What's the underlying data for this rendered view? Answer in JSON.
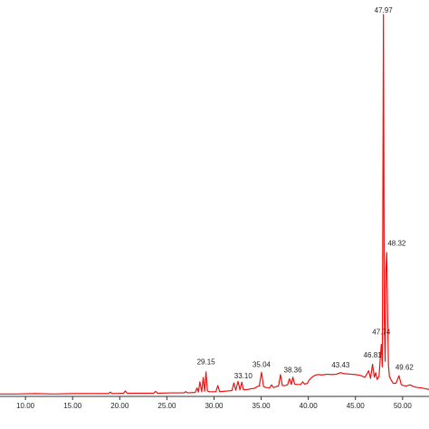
{
  "colors": {
    "trace": "#ee1111",
    "axis": "#333333",
    "text": "#222222"
  },
  "chart_data": {
    "type": "line",
    "title": "",
    "xlabel": "",
    "ylabel": "",
    "xlim": [
      7.3,
      52.8
    ],
    "ylim": [
      0,
      100
    ],
    "grid": false,
    "legend": "none",
    "x_ticks": [
      "10.00",
      "15.00",
      "20.00",
      "25.00",
      "30.00",
      "35.00",
      "40.00",
      "45.00",
      "50.00"
    ],
    "peak_labels": [
      {
        "text": "29.15",
        "x": 29.15,
        "y": 7.5
      },
      {
        "text": "33.10",
        "x": 33.1,
        "y": 3.8
      },
      {
        "text": "35.04",
        "x": 35.04,
        "y": 6.8
      },
      {
        "text": "38.36",
        "x": 38.36,
        "y": 5.3
      },
      {
        "text": "43.43",
        "x": 43.43,
        "y": 6.6
      },
      {
        "text": "46.81",
        "x": 46.81,
        "y": 9.3
      },
      {
        "text": "47.74",
        "x": 47.74,
        "y": 15.3
      },
      {
        "text": "48.32",
        "x": 48.32,
        "y": 38.8
      },
      {
        "text": "47.97",
        "x": 47.97,
        "y": 100
      },
      {
        "text": "49.62",
        "x": 49.62,
        "y": 6.1
      }
    ],
    "series": [
      {
        "x": [
          7.3,
          9.0,
          11.0,
          13.0,
          15.0,
          17.0,
          18.8,
          19.0,
          19.2,
          20.4,
          20.6,
          20.8,
          22.0,
          23.6,
          23.8,
          24.0,
          25.5,
          26.8,
          27.0,
          27.2,
          28.0,
          28.2,
          28.35,
          28.5,
          28.7,
          28.85,
          29.0,
          29.15,
          29.3,
          29.5,
          30.2,
          30.4,
          30.6,
          31.0,
          31.5,
          31.9,
          32.1,
          32.3,
          32.55,
          32.75,
          32.95,
          33.1,
          33.3,
          33.6,
          34.0,
          34.3,
          34.55,
          34.8,
          35.04,
          35.25,
          35.5,
          35.9,
          36.1,
          36.3,
          36.6,
          36.85,
          37.05,
          37.25,
          37.5,
          37.8,
          38.0,
          38.2,
          38.36,
          38.55,
          38.8,
          39.2,
          39.4,
          39.6,
          39.9,
          40.1,
          40.4,
          40.7,
          41.0,
          41.5,
          42.0,
          42.5,
          43.0,
          43.2,
          43.43,
          43.65,
          44.0,
          44.5,
          45.0,
          45.5,
          45.8,
          46.0,
          46.2,
          46.4,
          46.6,
          46.81,
          47.0,
          47.15,
          47.3,
          47.5,
          47.62,
          47.74,
          47.85,
          47.97,
          48.06,
          48.15,
          48.23,
          48.32,
          48.42,
          48.5,
          48.6,
          48.8,
          49.0,
          49.3,
          49.62,
          49.85,
          50.1,
          50.4,
          50.8,
          51.2,
          51.6,
          52.0,
          52.4,
          52.8
        ],
        "y": [
          0.4,
          0.4,
          0.5,
          0.4,
          0.5,
          0.5,
          0.5,
          0.9,
          0.5,
          0.6,
          1.2,
          0.6,
          0.6,
          0.6,
          1.1,
          0.6,
          0.7,
          0.7,
          1.0,
          0.7,
          0.8,
          2.0,
          0.9,
          3.6,
          1.0,
          4.7,
          1.1,
          6.2,
          1.2,
          1.0,
          1.0,
          2.6,
          1.0,
          1.1,
          1.2,
          1.3,
          3.3,
          1.4,
          3.7,
          1.5,
          3.5,
          1.6,
          1.5,
          1.6,
          1.8,
          1.9,
          2.3,
          2.5,
          6.1,
          2.4,
          2.1,
          2.0,
          2.8,
          2.1,
          2.3,
          2.6,
          5.5,
          2.6,
          2.6,
          2.8,
          4.4,
          2.9,
          4.8,
          3.0,
          2.9,
          2.9,
          3.6,
          3.0,
          3.2,
          4.1,
          4.8,
          5.3,
          5.5,
          5.4,
          5.6,
          5.5,
          5.6,
          5.8,
          6.0,
          5.8,
          5.7,
          5.6,
          5.5,
          5.3,
          5.0,
          4.8,
          5.6,
          6.5,
          4.5,
          8.2,
          4.8,
          6.0,
          4.2,
          5.0,
          9.4,
          13.4,
          7.5,
          100,
          20.0,
          9.0,
          33.0,
          37.5,
          20.0,
          8.0,
          5.0,
          4.0,
          3.2,
          3.2,
          5.2,
          2.9,
          2.6,
          2.5,
          2.8,
          2.3,
          2.1,
          2.0,
          1.8,
          1.6
        ]
      }
    ]
  }
}
